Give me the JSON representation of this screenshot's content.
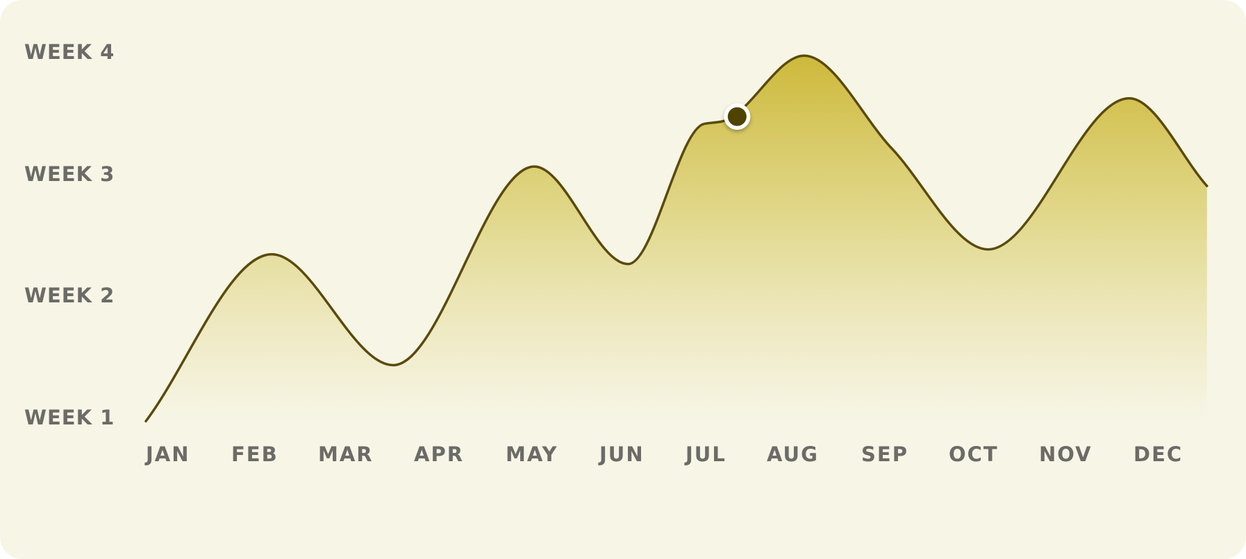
{
  "chart_data": {
    "type": "area",
    "x_labels": [
      "JAN",
      "FEB",
      "MAR",
      "APR",
      "MAY",
      "JUN",
      "JUL",
      "AUG",
      "SEP",
      "OCT",
      "NOV",
      "DEC"
    ],
    "y_labels": [
      "WEEK 4",
      "WEEK 3",
      "WEEK 2",
      "WEEK 1"
    ],
    "ylim": [
      1,
      4
    ],
    "grid": false,
    "legend": "none",
    "series": [
      {
        "points": [
          {
            "x": 0.0,
            "y": 0.97
          },
          {
            "x": 1.41,
            "y": 2.34
          },
          {
            "x": 2.77,
            "y": 1.43
          },
          {
            "x": 4.35,
            "y": 3.06
          },
          {
            "x": 5.4,
            "y": 2.26
          },
          {
            "x": 6.25,
            "y": 3.41
          },
          {
            "x": 6.45,
            "y": 3.43
          },
          {
            "x": 7.37,
            "y": 3.97
          },
          {
            "x": 8.35,
            "y": 3.21
          },
          {
            "x": 9.43,
            "y": 2.38
          },
          {
            "x": 11.01,
            "y": 3.62
          },
          {
            "x": 11.88,
            "y": 2.9
          }
        ]
      }
    ],
    "highlight": {
      "x": 6.62,
      "y": 3.47
    },
    "colors": {
      "line": "#5a4a0c",
      "fill_top": "#cdb93a",
      "fill_bottom": "#f7f5e6",
      "marker_fill": "#4f4300",
      "marker_ring": "#ffffff",
      "background": "#f7f5e6",
      "label": "#6b6b67"
    }
  }
}
